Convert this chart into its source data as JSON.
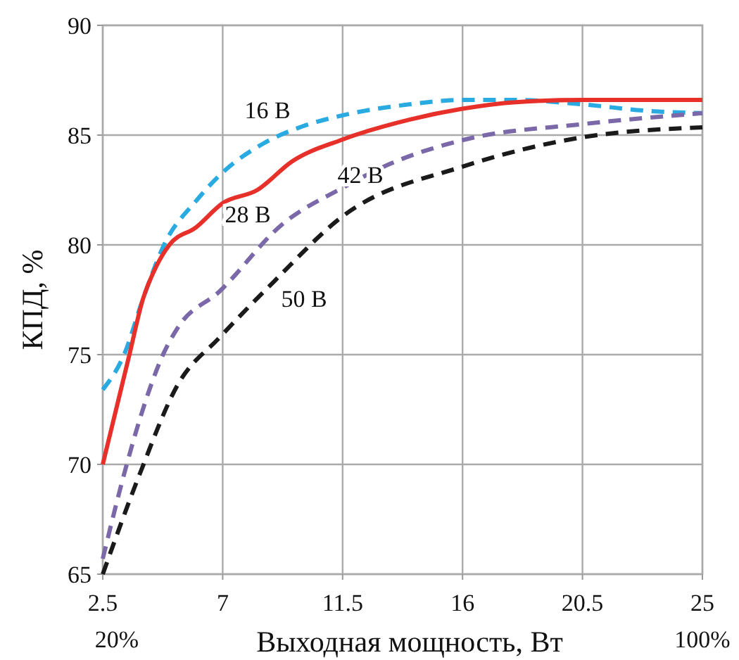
{
  "chart_data": {
    "type": "line",
    "xlabel": "Выходная мощность, Вт",
    "ylabel": "КПД, %",
    "series": [
      {
        "name": "16 В",
        "color": "#29abe2",
        "line_style": "dashed",
        "x": [
          2.5,
          3.3,
          4,
          4.8,
          6,
          7,
          8.5,
          10,
          11.5,
          14,
          16,
          18,
          20.5,
          23,
          25
        ],
        "values": [
          73.4,
          75,
          77.5,
          80,
          82,
          83.3,
          84.6,
          85.4,
          85.9,
          86.4,
          86.6,
          86.6,
          86.4,
          86.1,
          86.0
        ]
      },
      {
        "name": "28 В",
        "color": "#e8302a",
        "line_style": "solid",
        "x": [
          2.5,
          3,
          3.5,
          4,
          4.5,
          5,
          6,
          7,
          8.3,
          9.6,
          11.5,
          14,
          16,
          18,
          20.5,
          25
        ],
        "values": [
          70,
          72.5,
          75,
          77.5,
          79,
          80,
          80.8,
          81.9,
          82.5,
          83.8,
          84.8,
          85.7,
          86.2,
          86.5,
          86.6,
          86.6
        ]
      },
      {
        "name": "42 В",
        "color": "#7a68a8",
        "line_style": "dashed",
        "x": [
          2.5,
          3.4,
          3.9,
          4.8,
          5.3,
          6.9,
          9.2,
          11.5,
          13.3,
          16.1,
          20.5,
          25
        ],
        "values": [
          65.7,
          70,
          72.1,
          75.1,
          76.2,
          77.9,
          80.9,
          82.6,
          83.7,
          84.8,
          85.5,
          86.0
        ]
      },
      {
        "name": "50 В",
        "color": "#1a1a1a",
        "line_style": "dashed",
        "x": [
          2.5,
          3.9,
          5.3,
          6.9,
          8.9,
          11.5,
          16.1,
          20.5,
          25
        ],
        "values": [
          65,
          69.6,
          73.6,
          75.8,
          78.3,
          81.3,
          83.6,
          84.9,
          85.35
        ]
      }
    ],
    "xlim": [
      2.5,
      25
    ],
    "xticks": [
      2.5,
      7,
      11.5,
      16,
      20.5,
      25
    ],
    "ylim": [
      65,
      90
    ],
    "yticks": [
      65,
      70,
      75,
      80,
      85,
      90
    ],
    "grid": true,
    "marker": "none",
    "annotations": [
      "20%",
      "100%"
    ]
  }
}
